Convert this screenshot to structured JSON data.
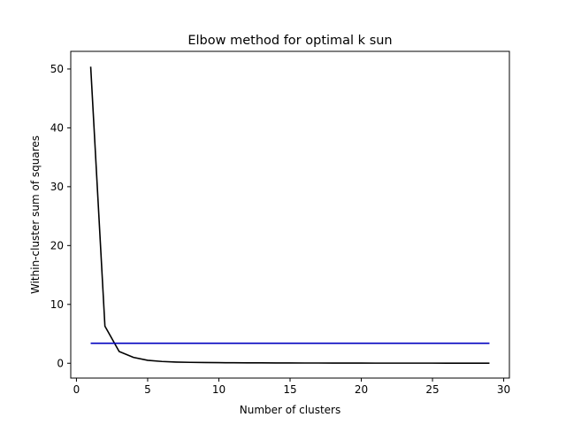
{
  "chart_data": {
    "type": "line",
    "title": "Elbow method for optimal k sun",
    "xlabel": "Number of clusters",
    "ylabel": "Within-cluster sum of squares",
    "xlim": [
      -0.4,
      30.4
    ],
    "ylim": [
      -2.52,
      53.0
    ],
    "xticks": [
      0,
      5,
      10,
      15,
      20,
      25,
      30
    ],
    "yticks": [
      0,
      10,
      20,
      30,
      40,
      50
    ],
    "grid": false,
    "series": [
      {
        "color": "#000000",
        "x": [
          1,
          2,
          3,
          4,
          5,
          6,
          7,
          8,
          9,
          10,
          11,
          12,
          13,
          14,
          15,
          16,
          17,
          18,
          19,
          20,
          21,
          22,
          23,
          24,
          25,
          26,
          27,
          28,
          29
        ],
        "y": [
          50.4,
          6.3,
          2.0,
          1.0,
          0.5,
          0.3,
          0.2,
          0.15,
          0.12,
          0.1,
          0.08,
          0.07,
          0.06,
          0.05,
          0.05,
          0.04,
          0.04,
          0.03,
          0.03,
          0.03,
          0.02,
          0.02,
          0.02,
          0.02,
          0.02,
          0.01,
          0.01,
          0.01,
          0.01
        ]
      },
      {
        "color": "#0000bf",
        "x": [
          1,
          29
        ],
        "y": [
          3.4,
          3.4
        ]
      }
    ]
  }
}
